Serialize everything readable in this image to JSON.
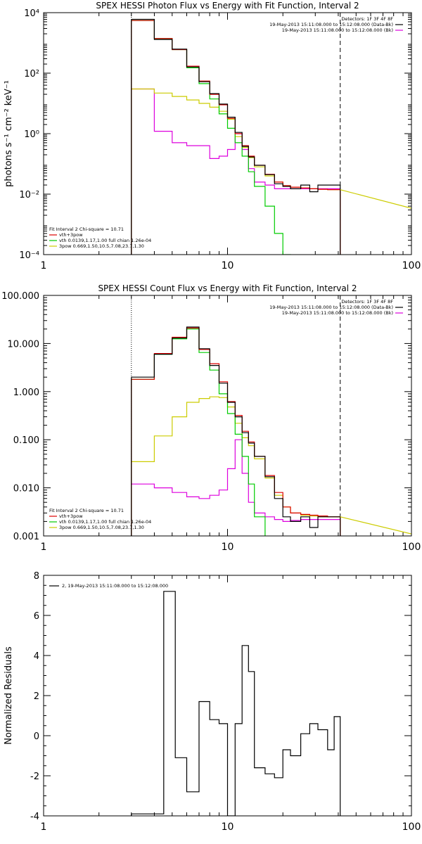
{
  "chart_data": [
    {
      "type": "line",
      "title": "SPEX HESSI Photon Flux vs Energy with Fit Function, Interval 2",
      "xlabel": "",
      "ylabel": "photons s⁻¹ cm⁻² keV⁻¹",
      "xscale": "log",
      "yscale": "log",
      "xlim": [
        1,
        100
      ],
      "ylim": [
        0.0001,
        10000
      ],
      "xticks": [
        1,
        10,
        100
      ],
      "xtick_labels": [
        "1",
        "10",
        "100"
      ],
      "yticks": [
        0.0001,
        0.01,
        1,
        100,
        10000
      ],
      "ytick_labels": [
        "10⁻⁴",
        "10⁻²",
        "10⁰",
        "10²",
        "10⁴"
      ],
      "legend_topright": [
        "Detectors: 1F 3F 4F 8F",
        "19-May-2013 15:11:08.000 to 15:12:08.000 (Data-Bk)",
        "19-May-2013 15:11:08.000 to 15:12:08.000 (Bk)"
      ],
      "legend_bottomleft": [
        "Fit Interval  2    Chi-square = 10.71",
        "vth+3pow",
        "vth 0.0139,1.17,1.00  full chian 1.26e-04",
        "3pow 0.669,1.50,10.5,7.08,23.7,1.30"
      ],
      "vlines": [
        3.0,
        41.0
      ],
      "edges": [
        3.0,
        4.0,
        5.0,
        6.0,
        7.0,
        8.0,
        9.0,
        10.0,
        11.0,
        12.0,
        13.0,
        14.0,
        16.0,
        18.0,
        20.0,
        22.0,
        25.0,
        28.0,
        31.0,
        35.0,
        41.0
      ],
      "series": [
        {
          "name": "Data-Bk",
          "color": "#000000",
          "values": [
            6000,
            1300,
            620,
            160,
            52,
            21,
            9.5,
            3.5,
            1.1,
            0.38,
            0.17,
            0.09,
            0.044,
            0.022,
            0.018,
            0.015,
            0.02,
            0.012,
            0.02,
            0.02
          ]
        },
        {
          "name": "vth+3pow",
          "color": "#dd0000",
          "values": [
            5500,
            1400,
            600,
            170,
            55,
            20,
            9.0,
            3.2,
            1.0,
            0.4,
            0.18,
            0.09,
            0.045,
            0.025,
            0.019,
            0.017,
            0.016,
            0.015,
            0.0145,
            0.014
          ]
        },
        {
          "name": "vth",
          "color": "#00cc00",
          "values": [
            5500,
            1400,
            600,
            150,
            45,
            14,
            4.5,
            1.5,
            0.5,
            0.18,
            0.055,
            0.018,
            0.004,
            0.0005,
            0.0001,
            4e-05,
            4e-05,
            4e-05,
            4e-05,
            4e-05
          ]
        },
        {
          "name": "3pow",
          "color": "#cccc00",
          "values": [
            30,
            22,
            17,
            13,
            10,
            7.5,
            5.5,
            3.0,
            0.8,
            0.35,
            0.16,
            0.08,
            0.04,
            0.025,
            0.019,
            0.017,
            0.016,
            0.015,
            0.0145,
            0.014
          ]
        },
        {
          "name": "Bk",
          "color": "#dd00dd",
          "values": [
            30,
            1.2,
            0.5,
            0.4,
            0.4,
            0.15,
            0.18,
            0.3,
            1.0,
            0.3,
            0.07,
            0.025,
            0.02,
            0.015,
            0.015,
            0.015,
            0.015,
            0.015,
            0.015,
            0.015
          ]
        }
      ],
      "extension_3pow": {
        "x": [
          41.0,
          100.0
        ],
        "values": [
          0.014,
          0.0034
        ]
      }
    },
    {
      "type": "line",
      "title": "SPEX HESSI Count Flux vs Energy with Fit Function, Interval 2",
      "xlabel": "",
      "ylabel": "",
      "xscale": "log",
      "yscale": "log",
      "xlim": [
        1,
        100
      ],
      "ylim": [
        0.001,
        100
      ],
      "xticks": [
        1,
        10,
        100
      ],
      "xtick_labels": [
        "1",
        "10",
        "100"
      ],
      "yticks": [
        0.001,
        0.01,
        0.1,
        1,
        10,
        100
      ],
      "ytick_labels": [
        "0.001",
        "0.010",
        "0.100",
        "1.000",
        "10.000",
        "100.000"
      ],
      "legend_topright": [
        "Detectors: 1F 3F 4F 8F",
        "19-May-2013 15:11:08.000 to 15:12:08.000 (Data-Bk)",
        "19-May-2013 15:11:08.000 to 15:12:08.000 (Bk)"
      ],
      "legend_bottomleft": [
        "Fit Interval  2    Chi-square = 10.71",
        "vth+3pow",
        "vth 0.0139,1.17,1.00  full chian 1.26e-04",
        "3pow 0.669,1.50,10.5,7.08,23.7,1.30"
      ],
      "vlines": [
        3.0,
        41.0
      ],
      "edges": [
        3.0,
        4.0,
        5.0,
        6.0,
        7.0,
        8.0,
        9.0,
        10.0,
        11.0,
        12.0,
        13.0,
        14.0,
        16.0,
        18.0,
        20.0,
        22.0,
        25.0,
        28.0,
        31.0,
        35.0,
        41.0
      ],
      "series": [
        {
          "name": "Data-Bk",
          "color": "#000000",
          "values": [
            2.0,
            6.0,
            13.0,
            22.0,
            7.8,
            3.5,
            1.5,
            0.6,
            0.3,
            0.14,
            0.085,
            0.045,
            0.017,
            0.006,
            0.0025,
            0.002,
            0.0025,
            0.0015,
            0.0025,
            0.0025
          ]
        },
        {
          "name": "vth+3pow",
          "color": "#dd0000",
          "values": [
            1.8,
            6.2,
            13.5,
            21.0,
            7.5,
            3.8,
            1.6,
            0.62,
            0.32,
            0.15,
            0.09,
            0.045,
            0.018,
            0.008,
            0.004,
            0.003,
            0.0028,
            0.0027,
            0.0026,
            0.0025
          ]
        },
        {
          "name": "vth",
          "color": "#00cc00",
          "values": [
            1.8,
            6.0,
            12.5,
            20.0,
            6.5,
            2.8,
            0.9,
            0.35,
            0.13,
            0.045,
            0.012,
            0.0025,
            0.0009,
            0.0009,
            0.0009,
            0.0009,
            0.0009,
            0.0009,
            0.0009,
            0.0009
          ]
        },
        {
          "name": "3pow",
          "color": "#cccc00",
          "values": [
            0.035,
            0.12,
            0.3,
            0.6,
            0.72,
            0.78,
            0.75,
            0.48,
            0.22,
            0.11,
            0.075,
            0.04,
            0.016,
            0.007,
            0.004,
            0.003,
            0.0027,
            0.0026,
            0.0025,
            0.0025
          ]
        },
        {
          "name": "Bk",
          "color": "#dd00dd",
          "values": [
            0.012,
            0.01,
            0.008,
            0.0065,
            0.006,
            0.007,
            0.009,
            0.025,
            0.1,
            0.02,
            0.005,
            0.003,
            0.0025,
            0.0022,
            0.002,
            0.0021,
            0.0022,
            0.0022,
            0.0022,
            0.0022
          ]
        }
      ],
      "extension_3pow": {
        "x": [
          41.0,
          100.0
        ],
        "values": [
          0.0025,
          0.0011
        ]
      }
    },
    {
      "type": "line",
      "title": "",
      "xlabel": "",
      "ylabel": "Normalized Residuals",
      "xscale": "log",
      "yscale": "linear",
      "xlim": [
        1,
        100
      ],
      "ylim": [
        -4,
        8
      ],
      "xticks": [
        1,
        10,
        100
      ],
      "xtick_labels": [
        "1",
        "10",
        "100"
      ],
      "yticks": [
        -4,
        -2,
        0,
        2,
        4,
        6,
        8
      ],
      "ytick_labels": [
        "-4",
        "-2",
        "0",
        "2",
        "4",
        "6",
        "8"
      ],
      "legend_topleft": [
        "2, 19-May-2013 15:11:08.000 to 15:12:08.000"
      ],
      "edges": [
        3.0,
        4.0,
        4.5,
        5.2,
        6.0,
        7.0,
        8.0,
        9.0,
        10.0,
        11.0,
        12.0,
        13.0,
        14.0,
        16.0,
        18.0,
        20.0,
        22.0,
        25.0,
        28.0,
        31.0,
        35.0,
        38.0,
        41.0
      ],
      "series": [
        {
          "name": "",
          "color": "#000000",
          "values": [
            -3.9,
            -3.9,
            7.2,
            -1.1,
            -2.8,
            1.7,
            0.8,
            0.6,
            -4.0,
            0.6,
            4.5,
            3.2,
            -1.6,
            -1.9,
            -2.1,
            -0.7,
            -1.0,
            0.1,
            0.6,
            0.3,
            -0.7,
            0.95
          ]
        }
      ]
    }
  ]
}
